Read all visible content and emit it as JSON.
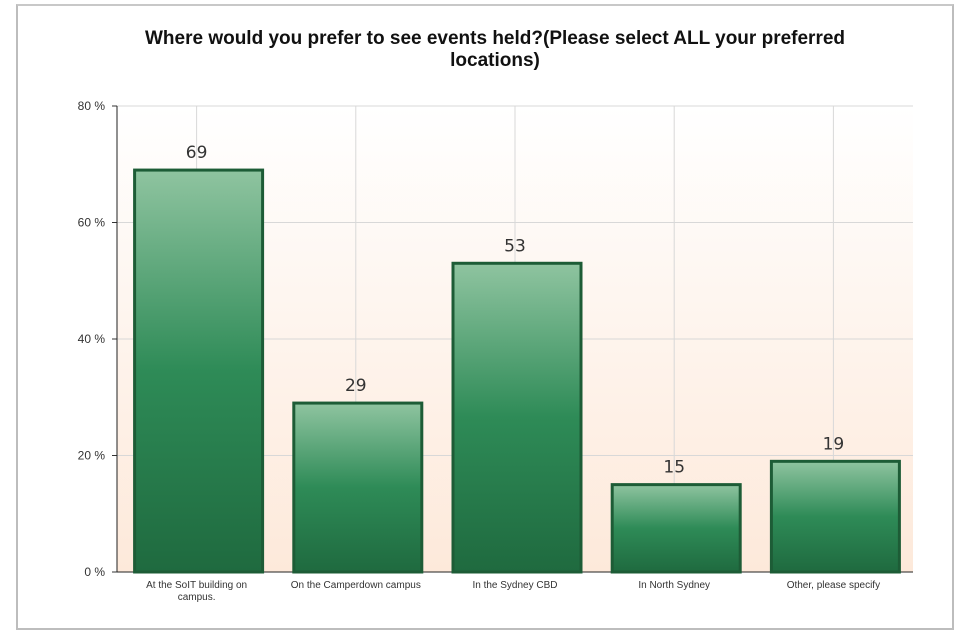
{
  "chart_data": {
    "type": "bar",
    "title": "Where would you prefer to see events held?(Please select ALL your preferred locations)",
    "categories": [
      "At the SoIT building on campus.",
      "On the Camperdown campus",
      "In the Sydney CBD",
      "In North Sydney",
      "Other, please specify"
    ],
    "values": [
      69,
      29,
      53,
      15,
      19
    ],
    "data_labels": [
      "69",
      "29",
      "53",
      "15",
      "19"
    ],
    "y_ticks": [
      "0 %",
      "20 %",
      "40 %",
      "60 %",
      "80 %"
    ],
    "y_tick_values": [
      0,
      20,
      40,
      60,
      80
    ],
    "ylim": [
      0,
      80
    ],
    "xlabel": "",
    "ylabel": "",
    "grid": true,
    "legend": "none",
    "colors": {
      "bar_top": "#8fc4a0",
      "bar_mid": "#2e8b57",
      "bar_bottom": "#1f6a3f",
      "bar_border": "#1d5c36",
      "plot_bg_top": "#ffffff",
      "plot_bg_bottom": "#fde9da",
      "grid": "#d8d8d8"
    }
  }
}
